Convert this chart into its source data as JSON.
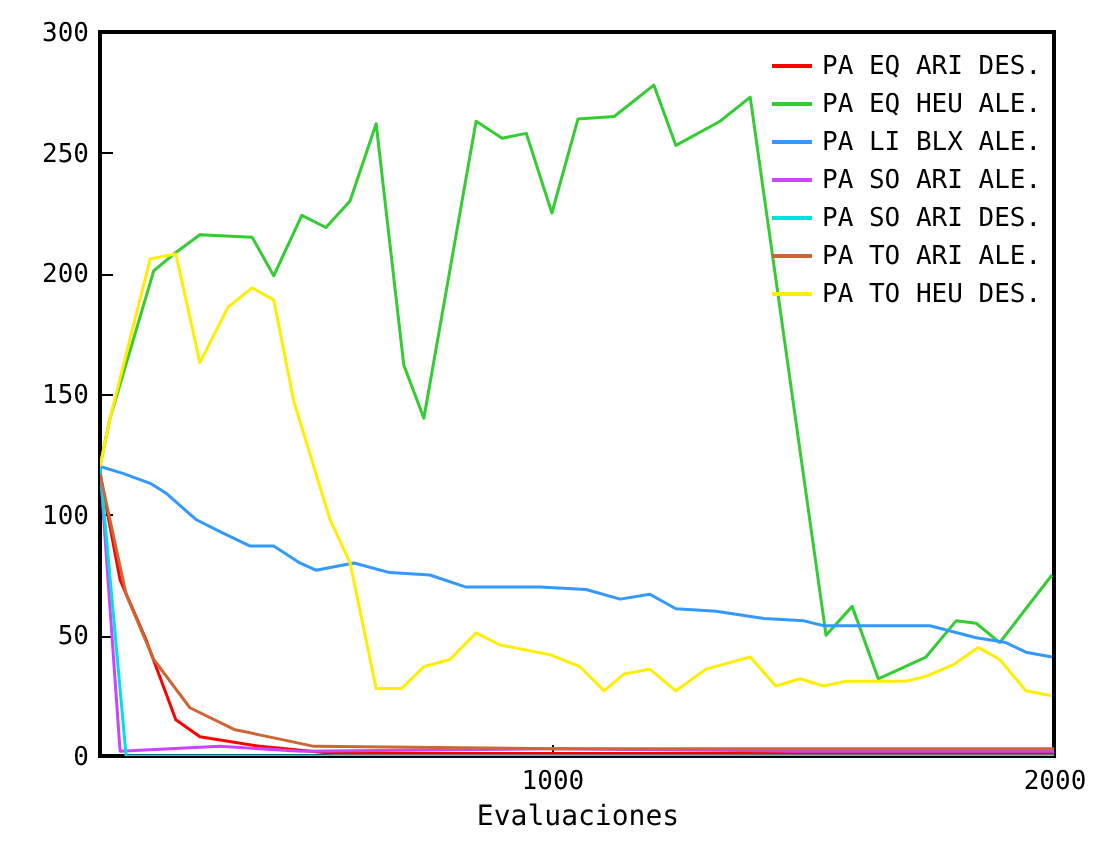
{
  "chart_data": {
    "type": "line",
    "xlabel": "Evaluaciones",
    "xlim": [
      100,
      2000
    ],
    "xticks": [
      1000,
      2000
    ],
    "ylim": [
      0,
      300
    ],
    "yticks": [
      0,
      50,
      100,
      150,
      200,
      250,
      300
    ],
    "grid": false,
    "legend": "top right",
    "marker": "none",
    "line_style": "solid",
    "series": [
      {
        "name": "PA EQ ARI DES.",
        "color": "#ff0000",
        "x": [
          100,
          140,
          192,
          251,
          299,
          418,
          566,
          1000,
          2000
        ],
        "values": [
          117,
          73,
          48,
          15,
          8,
          4,
          1,
          1,
          1
        ]
      },
      {
        "name": "PA EQ HEU ALE.",
        "color": "#33cc33",
        "x": [
          100,
          120,
          207,
          247,
          299,
          403,
          446,
          502,
          550,
          598,
          650,
          705,
          745,
          849,
          901,
          949,
          1000,
          1052,
          1124,
          1203,
          1247,
          1335,
          1395,
          1546,
          1598,
          1650,
          1745,
          1805,
          1845,
          1892,
          1996
        ],
        "values": [
          120,
          140,
          201,
          208,
          216,
          215,
          199,
          224,
          219,
          230,
          262,
          162,
          140,
          263,
          256,
          258,
          225,
          264,
          265,
          278,
          253,
          263,
          273,
          50,
          62,
          32,
          41,
          56,
          55,
          47,
          75
        ]
      },
      {
        "name": "PA LI BLX ALE.",
        "color": "#3399ff",
        "x": [
          100,
          147,
          200,
          231,
          291,
          339,
          399,
          446,
          498,
          530,
          606,
          677,
          757,
          829,
          976,
          1068,
          1136,
          1195,
          1247,
          1327,
          1422,
          1502,
          1542,
          1753,
          1845,
          1904,
          1944,
          1996
        ],
        "values": [
          120,
          117,
          113,
          109,
          98,
          93,
          87,
          87,
          80,
          77,
          80,
          76,
          75,
          70,
          70,
          69,
          65,
          67,
          61,
          60,
          57,
          56,
          54,
          54,
          49,
          47,
          43,
          41
        ]
      },
      {
        "name": "PA SO ARI ALE.",
        "color": "#cc44ff",
        "x": [
          100,
          140,
          339,
          500,
          1000,
          1500,
          2000
        ],
        "values": [
          120,
          2,
          4,
          2,
          3,
          2,
          2
        ]
      },
      {
        "name": "PA SO ARI DES.",
        "color": "#00e0e0",
        "x": [
          100,
          152,
          2000
        ],
        "values": [
          120,
          0,
          0
        ]
      },
      {
        "name": "PA TO ARI ALE.",
        "color": "#cc6633",
        "x": [
          100,
          152,
          207,
          279,
          367,
          458,
          526,
          1000,
          2000
        ],
        "values": [
          117,
          67,
          40,
          20,
          11,
          7,
          4,
          3,
          3
        ]
      },
      {
        "name": "PA TO HEU DES.",
        "color": "#ffee00",
        "x": [
          100,
          120,
          200,
          251,
          299,
          355,
          403,
          446,
          486,
          558,
          598,
          650,
          701,
          745,
          797,
          849,
          897,
          996,
          1056,
          1104,
          1144,
          1195,
          1247,
          1307,
          1395,
          1446,
          1494,
          1542,
          1586,
          1705,
          1745,
          1801,
          1849,
          1892,
          1944,
          1996
        ],
        "values": [
          120,
          140,
          206,
          208,
          163,
          186,
          194,
          189,
          147,
          98,
          80,
          28,
          28,
          37,
          40,
          51,
          46,
          42,
          37,
          27,
          34,
          36,
          27,
          36,
          41,
          29,
          32,
          29,
          31,
          31,
          33,
          38,
          45,
          40,
          27,
          25
        ]
      }
    ]
  }
}
